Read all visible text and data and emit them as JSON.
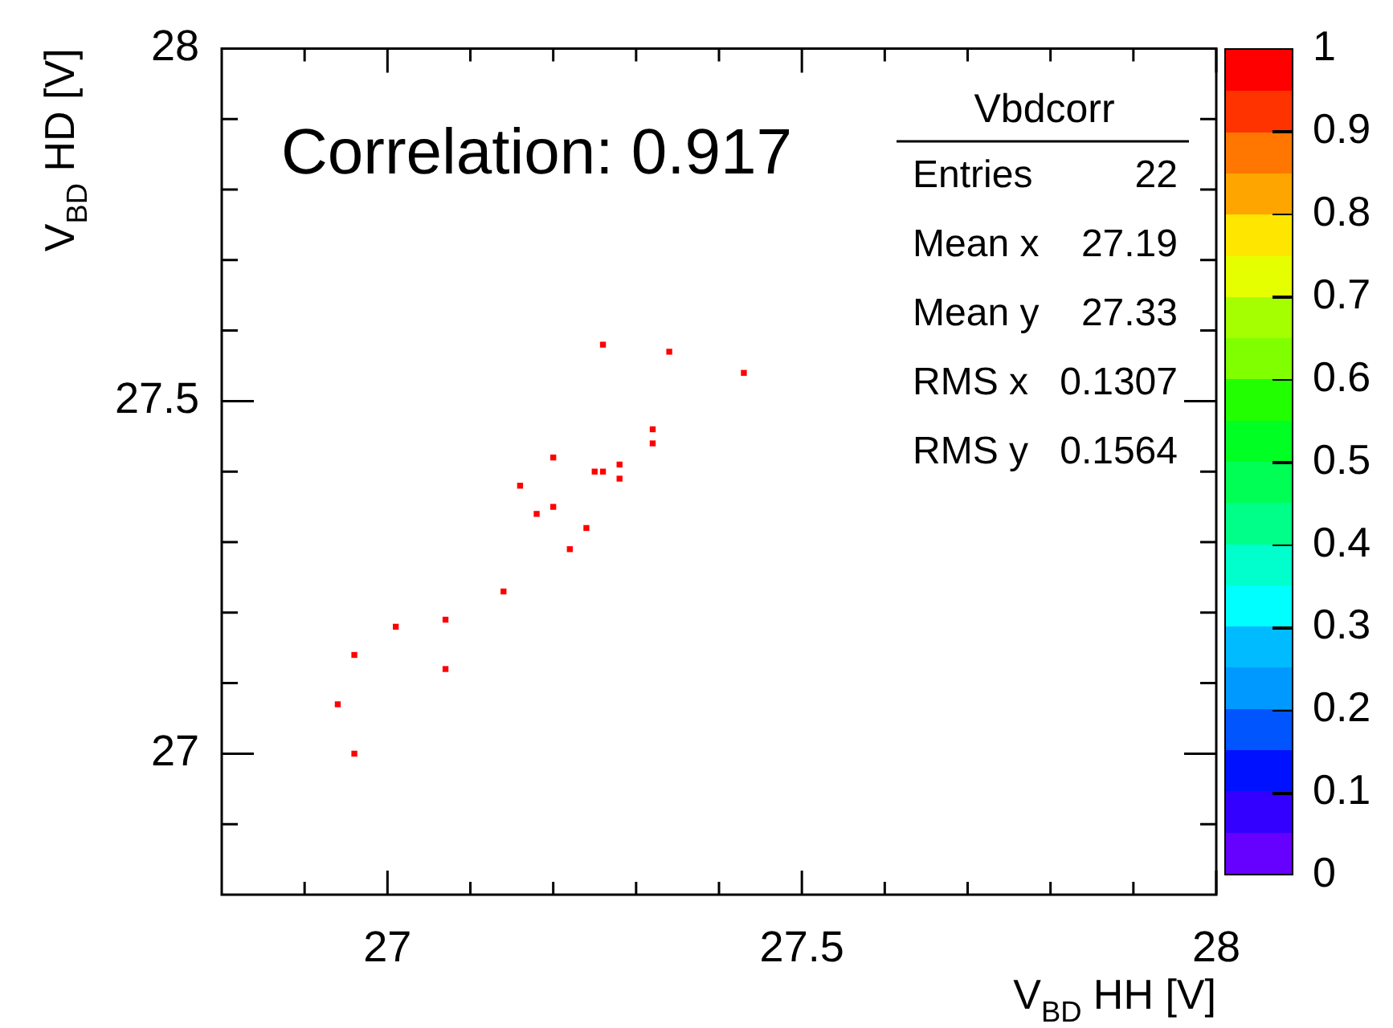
{
  "chart_data": {
    "type": "scatter",
    "xlabel": "V$_{BD}$ HH [V]",
    "ylabel": "V$_{BD}$ HD [V]",
    "clabel": null,
    "x": [
      27.26,
      27.34,
      27.43,
      27.32,
      27.32,
      27.2,
      27.25,
      27.26,
      27.28,
      27.28,
      27.16,
      27.2,
      27.18,
      27.24,
      27.22,
      27.14,
      27.07,
      27.01,
      26.96,
      27.07,
      26.94,
      26.96
    ],
    "values": [
      27.58,
      27.57,
      27.54,
      27.46,
      27.44,
      27.42,
      27.4,
      27.4,
      27.41,
      27.39,
      27.38,
      27.35,
      27.34,
      27.32,
      27.29,
      27.23,
      27.19,
      27.18,
      27.14,
      27.12,
      27.07,
      27.0
    ],
    "cvalues": [
      1,
      1,
      1,
      1,
      1,
      1,
      1,
      1,
      1,
      1,
      1,
      1,
      1,
      1,
      1,
      1,
      1,
      1,
      1,
      1,
      1,
      1
    ],
    "clim": [
      0,
      1
    ],
    "cticks": [
      0,
      0.1,
      0.2,
      0.3,
      0.4,
      0.5,
      0.6,
      0.7,
      0.8,
      0.9,
      1
    ],
    "xlim": [
      26.8,
      28
    ],
    "ylim": [
      26.8,
      28
    ],
    "xticks": [
      {
        "value": 26.9,
        "label": null
      },
      27,
      {
        "value": 27.1,
        "label": null
      },
      {
        "value": 27.2,
        "label": null
      },
      {
        "value": 27.3,
        "label": null
      },
      {
        "value": 27.4,
        "label": null
      },
      27.5,
      {
        "value": 27.6,
        "label": null
      },
      {
        "value": 27.7,
        "label": null
      },
      {
        "value": 27.8,
        "label": null
      },
      {
        "value": 27.9,
        "label": null
      },
      28
    ],
    "yticks": [
      {
        "value": 26.9,
        "label": null
      },
      27,
      {
        "value": 27.1,
        "label": null
      },
      {
        "value": 27.2,
        "label": null
      },
      {
        "value": 27.3,
        "label": null
      },
      {
        "value": 27.4,
        "label": null
      },
      27.5,
      {
        "value": 27.6,
        "label": null
      },
      {
        "value": 27.7,
        "label": null
      },
      {
        "value": 27.8,
        "label": null
      },
      {
        "value": 27.9,
        "label": null
      },
      28
    ],
    "marker": "square",
    "grid": false,
    "legend": false,
    "annotations": [
      "Correlation: 0.917",
      "Vbdcorr",
      "Entries",
      "22",
      "Mean x",
      "27.19",
      "Mean y",
      "27.33",
      "RMS x",
      "0.1307",
      "RMS y",
      "0.1564"
    ]
  }
}
